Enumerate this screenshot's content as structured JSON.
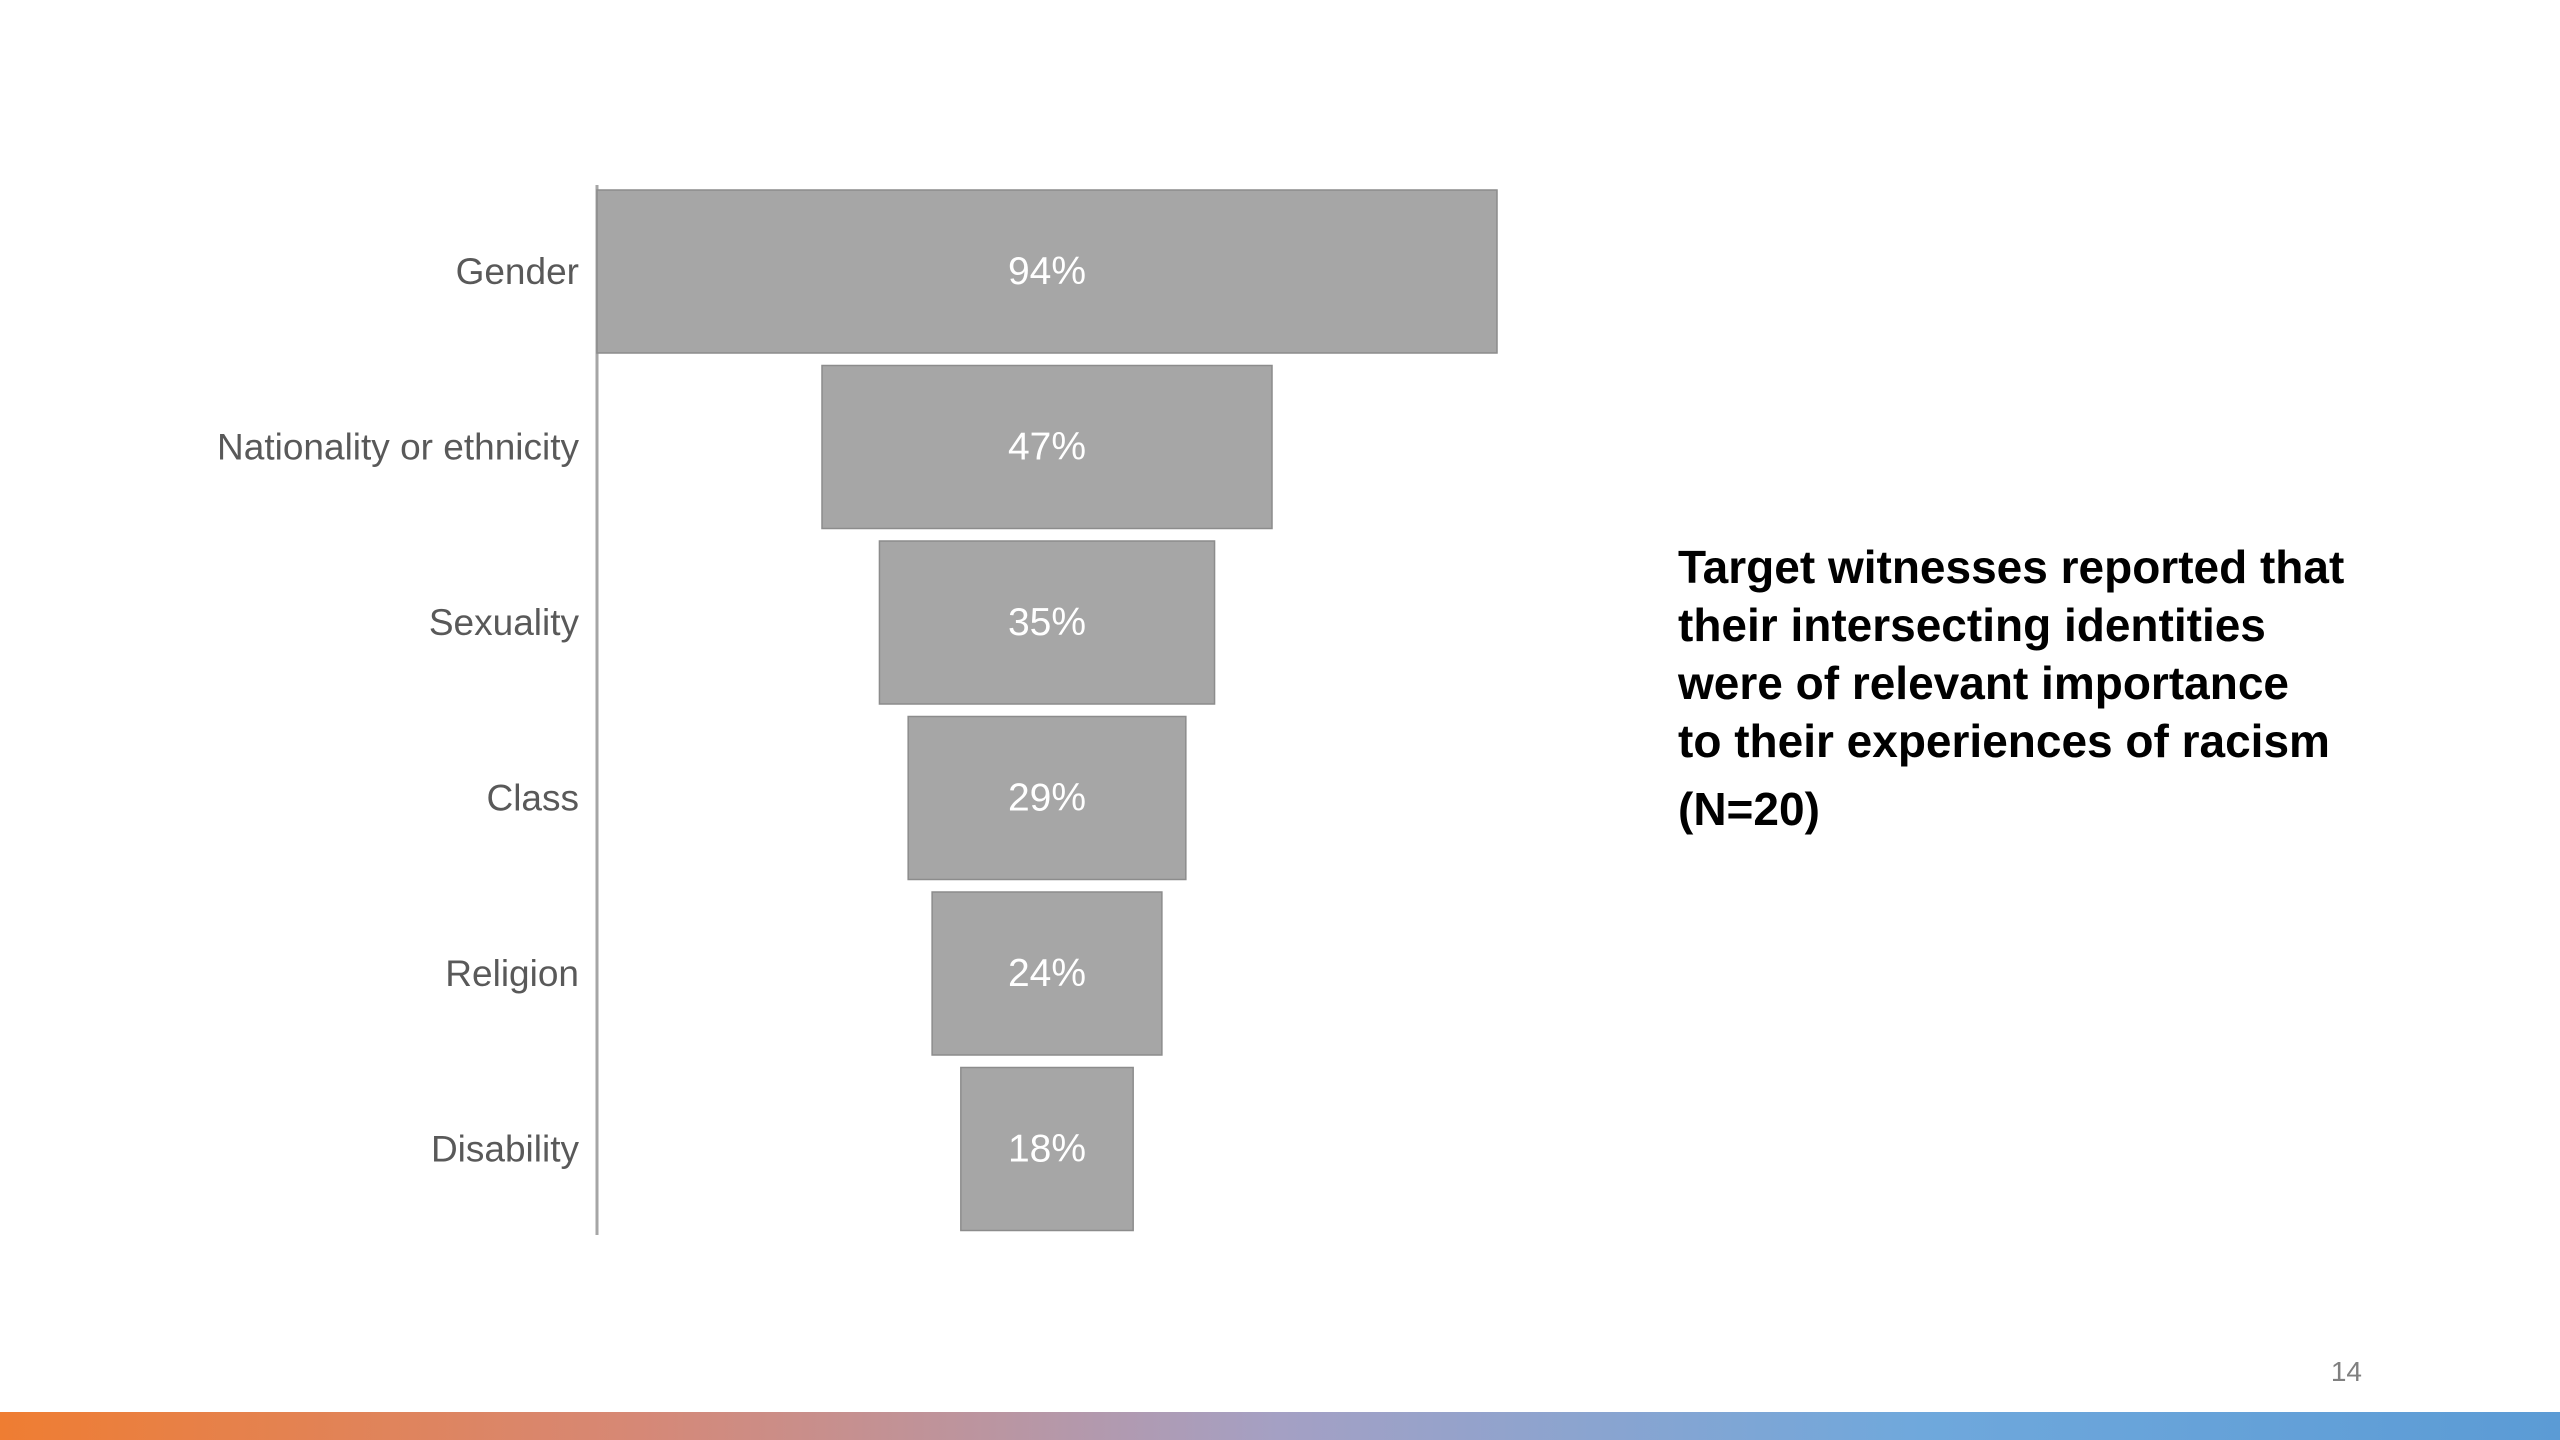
{
  "chart_data": {
    "type": "bar",
    "orientation": "horizontal-funnel",
    "categories": [
      "Gender",
      "Nationality or ethnicity",
      "Sexuality",
      "Class",
      "Religion",
      "Disability"
    ],
    "values": [
      94,
      47,
      35,
      29,
      24,
      18
    ],
    "value_labels": [
      "94%",
      "47%",
      "35%",
      "29%",
      "24%",
      "18%"
    ],
    "xlim": [
      0,
      94
    ],
    "grid": false,
    "legend": "none"
  },
  "side_text": {
    "lines": [
      "Target witnesses reported that",
      "their intersecting identities",
      "were of relevant importance",
      "to their experiences of racism"
    ],
    "sample": "(N=20)"
  },
  "page_number": "14",
  "colors": {
    "bar": "#a6a6a6",
    "bar_border": "#8c8c8c",
    "axis": "#a6a6a6",
    "category_text": "#595959",
    "value_text": "#ffffff",
    "gradient": [
      "#ef7d32",
      "#d68876",
      "#a4a0c4",
      "#6fa8dc",
      "#5b9bd5"
    ]
  }
}
